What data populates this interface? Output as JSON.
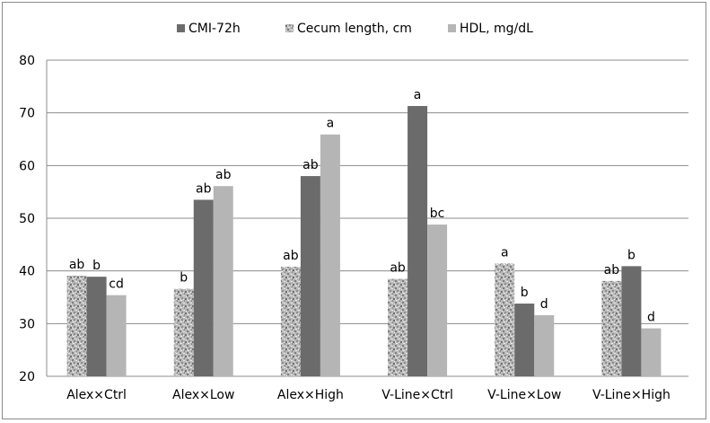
{
  "chart_data": {
    "type": "bar",
    "title": "",
    "xlabel": "",
    "ylabel": "",
    "ylim": [
      20,
      80
    ],
    "yticks": [
      20,
      30,
      40,
      50,
      60,
      70,
      80
    ],
    "grid": true,
    "legend_position": "top-center",
    "categories": [
      "Alex×Ctrl",
      "Alex×Low",
      "Alex×High",
      "V-Line×Ctrl",
      "V-Line×Low",
      "V-Line×High"
    ],
    "series": [
      {
        "name": "Cecum length, cm",
        "color": "#bdbdbd",
        "pattern": "granite",
        "values": [
          39.1,
          36.6,
          40.8,
          38.5,
          41.4,
          38.1
        ],
        "labels": [
          "ab",
          "b",
          "ab",
          "ab",
          "a",
          "ab"
        ]
      },
      {
        "name": "CMI-72h",
        "color": "#6b6b6b",
        "pattern": "solid",
        "values": [
          38.9,
          53.5,
          58.0,
          71.3,
          33.8,
          40.9
        ],
        "labels": [
          "b",
          "ab",
          "ab",
          "a",
          "b",
          "b"
        ]
      },
      {
        "name": "HDL, mg/dL",
        "color": "#b5b5b5",
        "pattern": "solid",
        "values": [
          35.4,
          56.1,
          65.9,
          48.8,
          31.6,
          29.1
        ],
        "labels": [
          "cd",
          "ab",
          "a",
          "bc",
          "d",
          "d"
        ]
      }
    ],
    "legend_order": [
      1,
      0,
      2
    ]
  },
  "colors": {
    "gridline": "#8c8c8c",
    "axis": "#8c8c8c",
    "frame": "#8a8a8a"
  }
}
